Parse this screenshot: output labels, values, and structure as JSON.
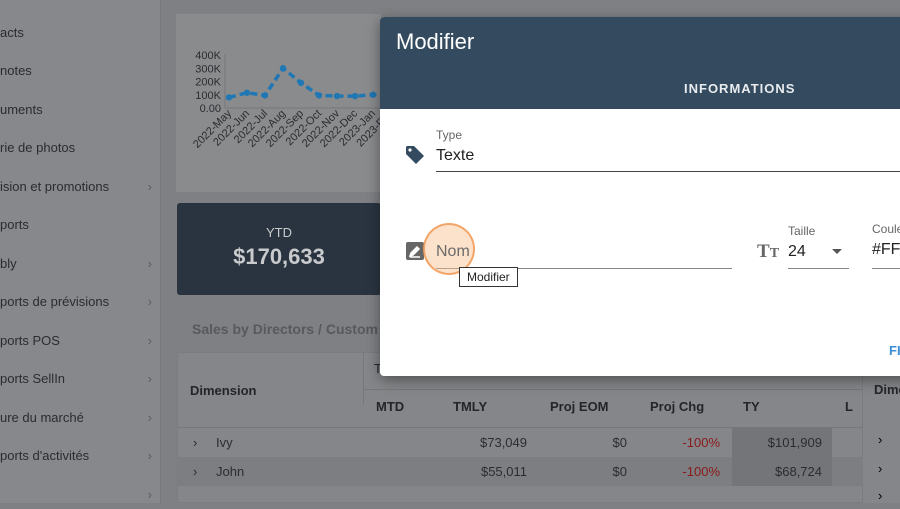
{
  "sidebar": {
    "items": [
      {
        "label": "acts",
        "chev": false
      },
      {
        "label": "notes",
        "chev": false
      },
      {
        "label": "uments",
        "chev": false
      },
      {
        "label": "rie de photos",
        "chev": false
      },
      {
        "label": "ision et promotions",
        "chev": true
      },
      {
        "label": "ports",
        "chev": false
      },
      {
        "label": "bly",
        "chev": true
      },
      {
        "label": "ports de prévisions",
        "chev": true
      },
      {
        "label": "ports POS",
        "chev": true
      },
      {
        "label": "ports SellIn",
        "chev": true
      },
      {
        "label": "ure du marché",
        "chev": true
      },
      {
        "label": "ports d'activités",
        "chev": true
      },
      {
        "label": "",
        "chev": true
      }
    ]
  },
  "chart_data": {
    "type": "line",
    "title": "",
    "xlabel": "",
    "ylabel": "",
    "ylim": [
      0,
      400000
    ],
    "yticks": [
      "400K",
      "300K",
      "200K",
      "100K",
      "0.00"
    ],
    "categories": [
      "2022-May",
      "2022-Jun",
      "2022-Jul",
      "2022-Aug",
      "2022-Sep",
      "2022-Oct",
      "2022-Nov",
      "2022-Dec",
      "2023-Jan",
      "2023-Feb"
    ],
    "values": [
      80000,
      115000,
      95000,
      300000,
      190000,
      95000,
      90000,
      90000,
      100000,
      90000
    ],
    "color": "#1f77b4"
  },
  "ytd": {
    "label": "YTD",
    "value": "$170,633"
  },
  "section_title": "Sales by Directors / Custom",
  "table": {
    "dimension": "Dimension",
    "group_partial": "T",
    "headers": [
      "MTD",
      "TMLY",
      "Proj EOM",
      "Proj Chg",
      "TY",
      "L"
    ],
    "rows": [
      {
        "name": "Ivy",
        "tmly": "$73,049",
        "proj_eom": "$0",
        "proj_chg": "-100%",
        "ty": "$101,909"
      },
      {
        "name": "John",
        "tmly": "$55,011",
        "proj_eom": "$0",
        "proj_chg": "-100%",
        "ty": "$68,724"
      }
    ]
  },
  "right_panel": {
    "header": "Dime"
  },
  "modal": {
    "title": "Modifier",
    "tab": "INFORMATIONS",
    "type_label": "Type",
    "type_value": "Texte",
    "name_placeholder": "Nom",
    "size_label": "Taille",
    "size_value": "24",
    "color_label": "Coule",
    "color_value": "#FF",
    "footer_button": "FI",
    "tooltip": "Modifier"
  }
}
